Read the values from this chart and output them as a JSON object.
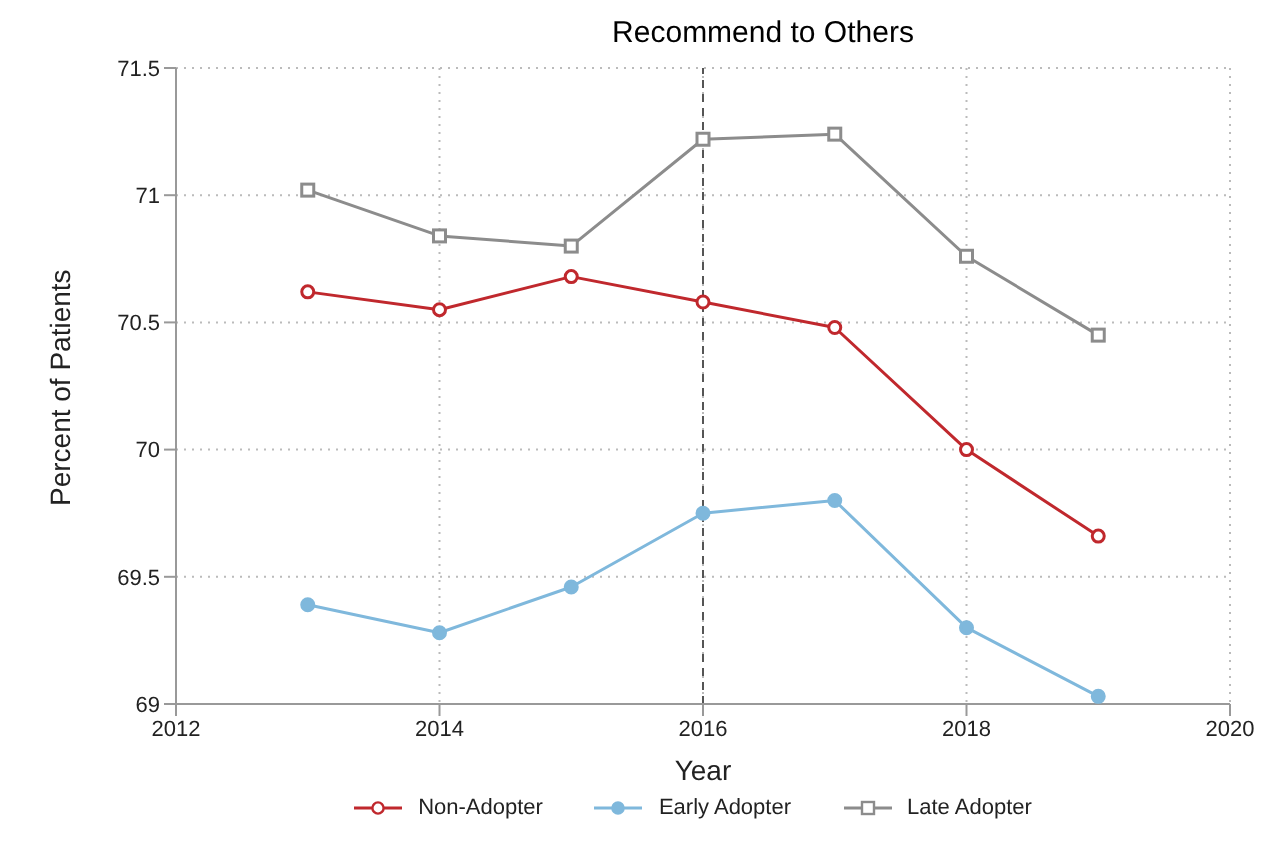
{
  "chart_data": {
    "type": "line",
    "title": "Recommend to Others",
    "xlabel": "Year",
    "ylabel": "Percent of Patients",
    "x": [
      2013,
      2014,
      2015,
      2016,
      2017,
      2018,
      2019
    ],
    "series": [
      {
        "name": "Non-Adopter",
        "color": "#c0282d",
        "marker": "circle",
        "values": [
          70.62,
          70.55,
          70.68,
          70.58,
          70.48,
          70.0,
          69.66
        ]
      },
      {
        "name": "Early Adopter",
        "color": "#7fb8dc",
        "marker": "circle",
        "values": [
          69.39,
          69.28,
          69.46,
          69.75,
          69.8,
          69.3,
          69.03
        ]
      },
      {
        "name": "Late Adopter",
        "color": "#8c8c8c",
        "marker": "square",
        "values": [
          71.02,
          70.84,
          70.8,
          71.22,
          71.24,
          70.76,
          70.45
        ]
      }
    ],
    "xlim": [
      2012,
      2020
    ],
    "xticks": [
      2012,
      2014,
      2016,
      2018,
      2020
    ],
    "ylim": [
      69,
      71.5
    ],
    "yticks": [
      69,
      69.5,
      70,
      70.5,
      71,
      71.5
    ],
    "grid": true,
    "legend": "bottom",
    "ref_lines": [
      {
        "axis": "x",
        "value": 2016,
        "color": "#555555",
        "line_style": "dashed"
      }
    ]
  }
}
